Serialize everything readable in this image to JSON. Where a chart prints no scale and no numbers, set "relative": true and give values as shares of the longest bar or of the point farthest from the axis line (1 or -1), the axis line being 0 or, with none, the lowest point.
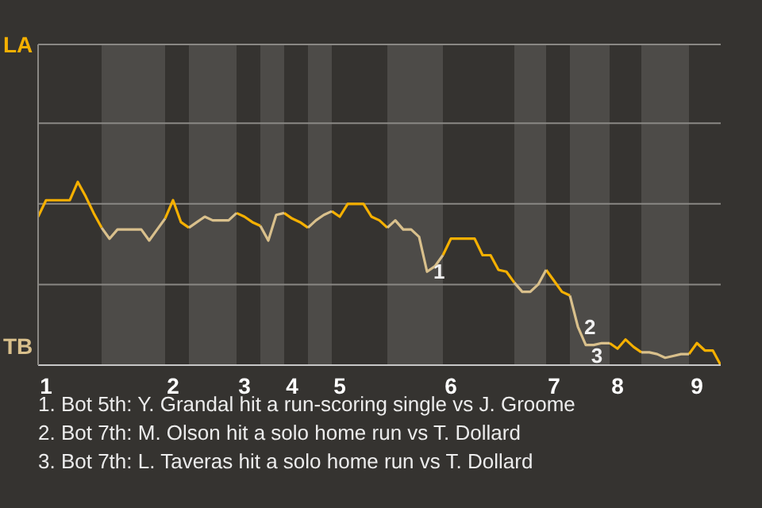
{
  "chart_data": {
    "type": "line",
    "relative": true,
    "categories": [
      null,
      "1",
      null,
      null,
      null,
      null,
      null,
      null,
      null,
      null,
      null,
      null,
      null,
      null,
      null,
      null,
      null,
      "2",
      null,
      null,
      null,
      null,
      null,
      null,
      null,
      null,
      "3",
      null,
      null,
      null,
      null,
      null,
      "4",
      null,
      null,
      null,
      null,
      null,
      "5",
      null,
      null,
      null,
      null,
      null,
      null,
      null,
      null,
      null,
      null,
      null,
      null,
      null,
      "6",
      null,
      null,
      null,
      null,
      null,
      null,
      null,
      null,
      null,
      null,
      null,
      null,
      "7",
      null,
      null,
      null,
      null,
      null,
      null,
      null,
      "8",
      null,
      null,
      null,
      null,
      null,
      null,
      null,
      null,
      null,
      "9",
      null,
      null,
      null
    ],
    "series": [
      {
        "color": "#f5b000",
        "values": [
          0.81,
          0.9,
          0.9,
          0.9,
          0.9,
          1,
          0.92,
          0.83,
          0.75,
          null,
          null,
          null,
          null,
          null,
          null,
          null,
          0.8,
          0.9,
          0.78,
          0.75,
          null,
          null,
          null,
          null,
          null,
          0.83,
          0.81,
          0.78,
          0.76,
          null,
          null,
          0.83,
          0.8,
          0.78,
          0.75,
          null,
          null,
          0.84,
          0.81,
          0.88,
          0.88,
          0.88,
          0.81,
          0.79,
          0.75,
          null,
          null,
          null,
          null,
          null,
          null,
          0.6,
          0.69,
          0.69,
          0.69,
          0.69,
          0.6,
          0.6,
          0.52,
          0.51,
          0.45,
          null,
          null,
          null,
          0.52,
          0.46,
          0.4,
          0.38,
          null,
          null,
          null,
          null,
          0.12,
          0.09,
          0.14,
          0.1,
          0.07,
          null,
          null,
          null,
          null,
          null,
          0.06,
          0.12,
          0.08,
          0.08,
          0
        ]
      },
      {
        "color": "#d9c08c",
        "values": [
          null,
          null,
          null,
          null,
          null,
          null,
          null,
          null,
          0.75,
          0.69,
          0.74,
          0.74,
          0.74,
          0.74,
          0.68,
          0.74,
          0.8,
          null,
          null,
          0.75,
          0.78,
          0.81,
          0.79,
          0.79,
          0.79,
          0.83,
          null,
          null,
          0.76,
          0.68,
          0.82,
          0.83,
          null,
          null,
          0.75,
          0.79,
          0.82,
          0.84,
          null,
          null,
          null,
          null,
          null,
          null,
          0.75,
          0.79,
          0.74,
          0.74,
          0.7,
          0.51,
          0.54,
          0.6,
          null,
          null,
          null,
          null,
          null,
          null,
          null,
          null,
          0.45,
          0.4,
          0.4,
          0.44,
          0.52,
          null,
          null,
          0.38,
          0.21,
          0.11,
          0.11,
          0.12,
          0.12,
          null,
          null,
          null,
          0.07,
          0.07,
          0.06,
          0.04,
          0.05,
          0.06,
          0.06,
          null,
          null,
          null,
          null
        ]
      }
    ],
    "ref_lines": [
      {
        "axis": "y",
        "value": 0.44,
        "color": "#8a8884"
      },
      {
        "axis": "y",
        "value": 0.88,
        "color": "#8a8884"
      },
      {
        "axis": "y",
        "value": 1.32,
        "color": "#8a8884"
      },
      {
        "axis": "y",
        "value": 1.75,
        "color": "#8a8884"
      }
    ],
    "annotations": [
      "1",
      "2",
      "3",
      "LA",
      "TB",
      "1. Bot 5th: Y. Grandal hit a run-scoring single vs J. Groome",
      "2. Bot 7th: M. Olson hit a solo home run vs T. Dollard",
      "3. Bot 7th: L. Taveras hit a solo home run vs T. Dollard"
    ]
  }
}
